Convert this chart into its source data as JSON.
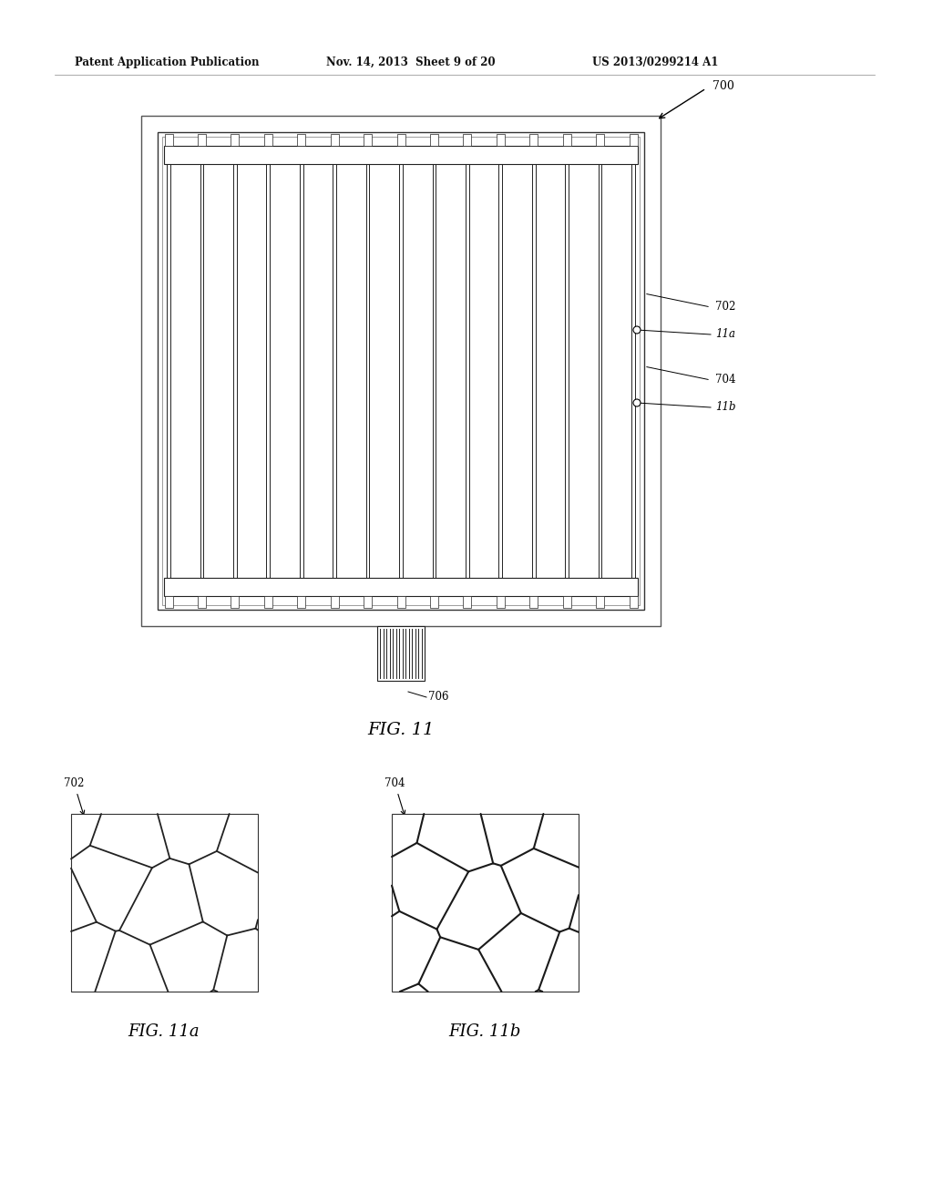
{
  "bg_color": "#ffffff",
  "header_left": "Patent Application Publication",
  "header_mid": "Nov. 14, 2013  Sheet 9 of 20",
  "header_right": "US 2013/0299214 A1",
  "fig11_label": "FIG. 11",
  "fig11a_label": "FIG. 11a",
  "fig11b_label": "FIG. 11b",
  "ref_700": "700",
  "ref_702": "702",
  "ref_11a": "11a",
  "ref_704": "704",
  "ref_11b": "11b",
  "ref_706": "706",
  "num_vertical_lines": 15,
  "line_color": "#222222"
}
